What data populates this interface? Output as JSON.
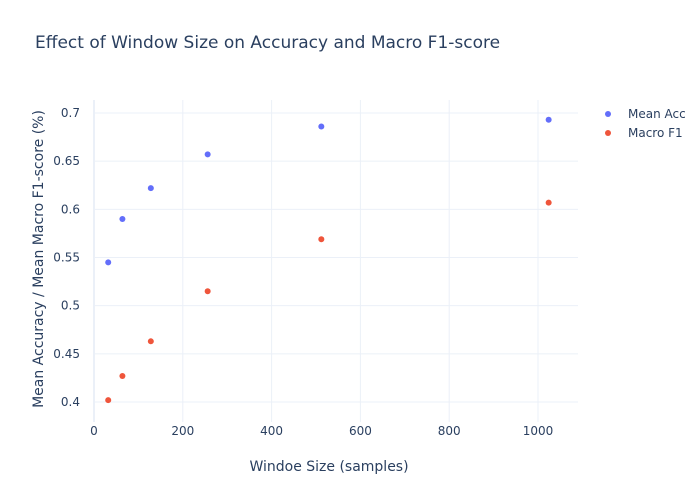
{
  "chart_data": {
    "type": "scatter",
    "title": "Effect of Window Size on Accuracy and Macro F1-score",
    "xlabel": "Windoe Size (samples)",
    "ylabel": "Mean Accuracy / Mean Macro F1-score (%)",
    "xlim": [
      -17,
      1086
    ],
    "ylim": [
      0.385,
      0.714
    ],
    "x_ticks": [
      0,
      200,
      400,
      600,
      800,
      1000
    ],
    "y_ticks": [
      0.4,
      0.45,
      0.5,
      0.55,
      0.6,
      0.65,
      0.7
    ],
    "grid": true,
    "legend_position": "top-right",
    "series": [
      {
        "name": "Mean Acc",
        "color": "#636efa",
        "x": [
          32,
          64,
          128,
          256,
          512,
          1024
        ],
        "y": [
          0.545,
          0.59,
          0.622,
          0.657,
          0.686,
          0.693
        ]
      },
      {
        "name": "Macro F1",
        "color": "#ef553b",
        "x": [
          32,
          64,
          128,
          256,
          512,
          1024
        ],
        "y": [
          0.402,
          0.427,
          0.463,
          0.515,
          0.569,
          0.607
        ]
      }
    ]
  }
}
